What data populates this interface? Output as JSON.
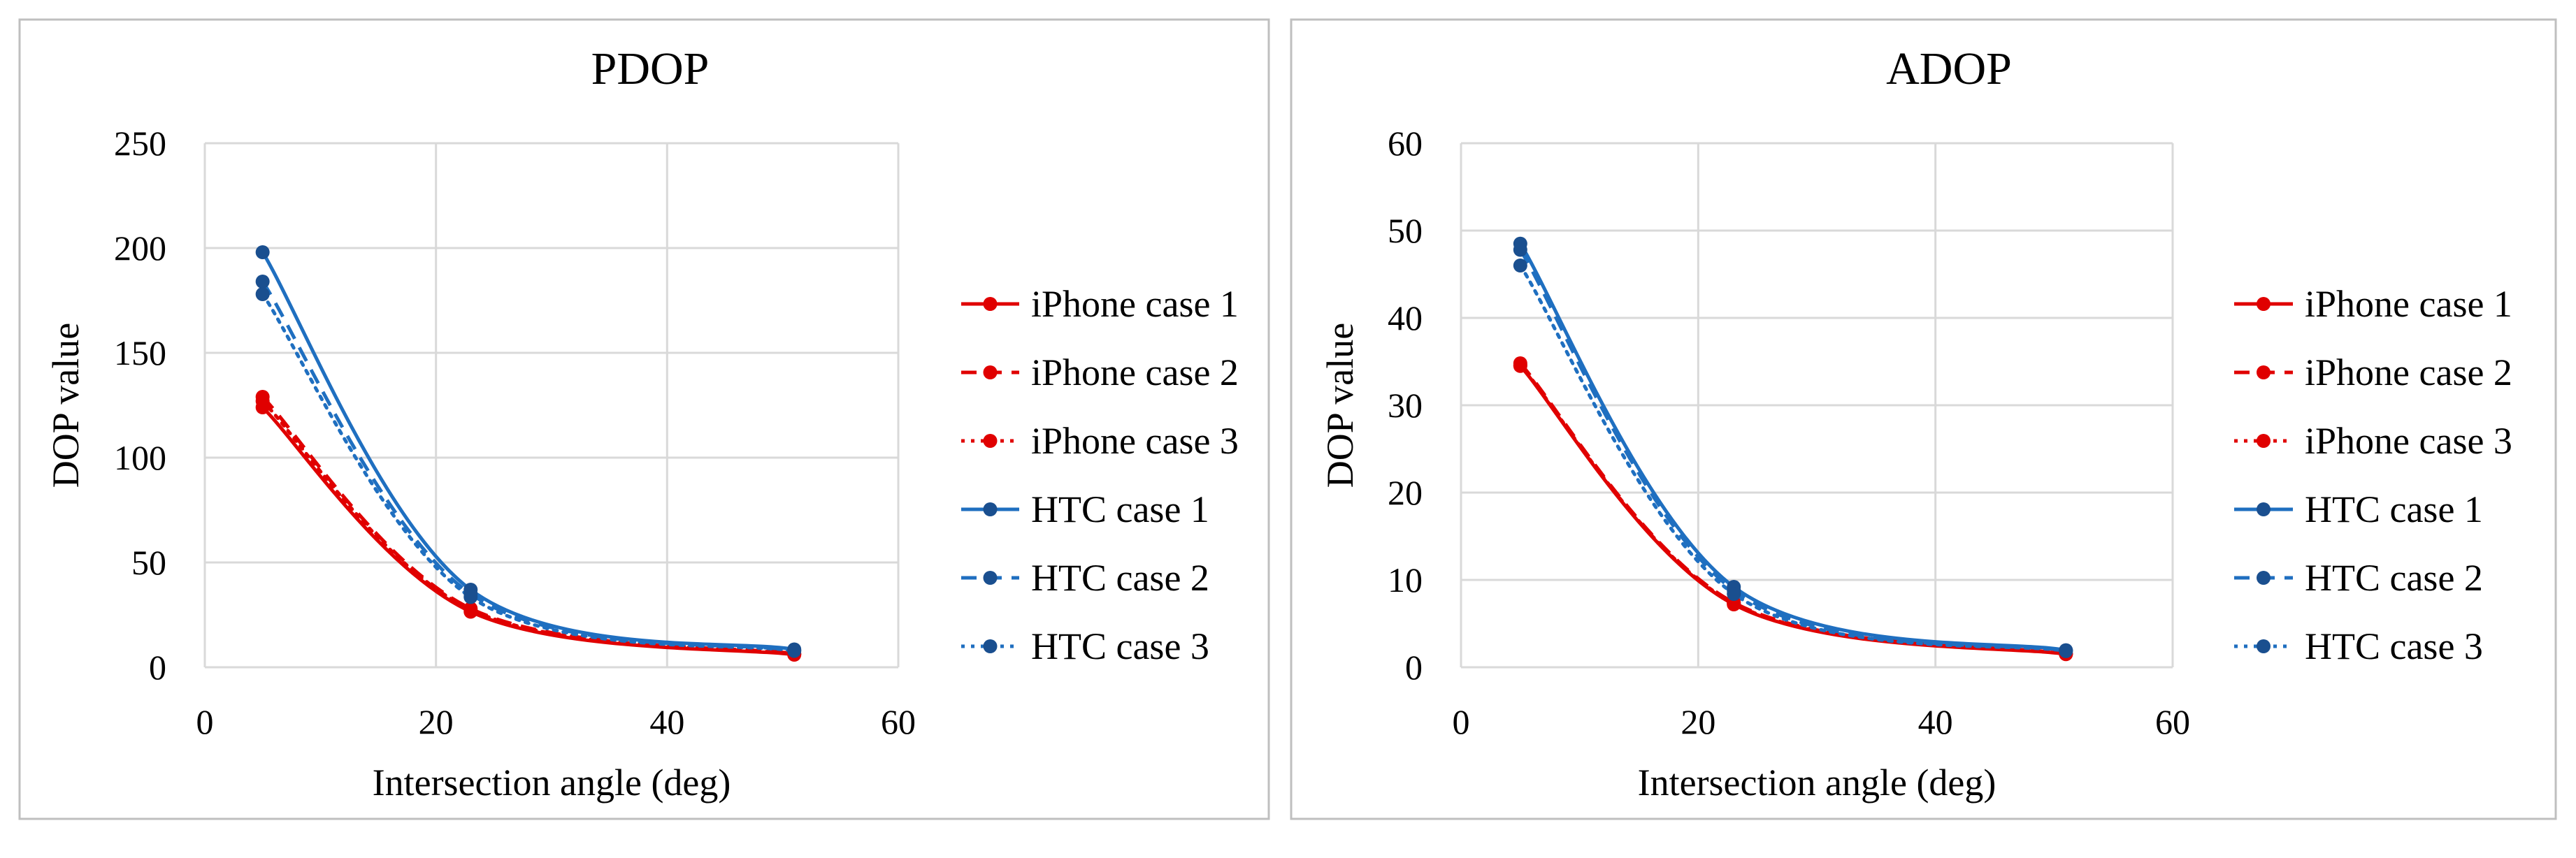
{
  "chart_data": [
    {
      "type": "scatter",
      "title": "PDOP",
      "xlabel": "Intersection angle (deg)",
      "ylabel": "DOP value",
      "xlim": [
        0,
        60
      ],
      "ylim": [
        0,
        250
      ],
      "xticks": [
        0,
        20,
        40,
        60
      ],
      "yticks": [
        0,
        50,
        100,
        150,
        200,
        250
      ],
      "grid": true,
      "legend_position": "right",
      "series": [
        {
          "name": "iPhone case 1",
          "color": "#e00000",
          "line_style": "solid",
          "x": [
            5,
            23,
            51
          ],
          "y": [
            124,
            26.5,
            6
          ]
        },
        {
          "name": "iPhone case 2",
          "color": "#e00000",
          "line_style": "dashed",
          "x": [
            5,
            23,
            51
          ],
          "y": [
            129,
            28,
            6.5
          ]
        },
        {
          "name": "iPhone case 3",
          "color": "#e00000",
          "line_style": "dotted",
          "x": [
            5,
            23,
            51
          ],
          "y": [
            127,
            27.5,
            6.3
          ]
        },
        {
          "name": "HTC case 1",
          "color": "#1f6fc0",
          "line_style": "solid",
          "x": [
            5,
            23,
            51
          ],
          "y": [
            198,
            37,
            8.5
          ]
        },
        {
          "name": "HTC case 2",
          "color": "#1f6fc0",
          "line_style": "dashed",
          "x": [
            5,
            23,
            51
          ],
          "y": [
            184,
            35,
            8
          ]
        },
        {
          "name": "HTC case 3",
          "color": "#1f6fc0",
          "line_style": "dotted",
          "x": [
            5,
            23,
            51
          ],
          "y": [
            178,
            33.5,
            7.8
          ]
        }
      ]
    },
    {
      "type": "scatter",
      "title": "ADOP",
      "xlabel": "Intersection angle (deg)",
      "ylabel": "DOP value",
      "xlim": [
        0,
        60
      ],
      "ylim": [
        0,
        60
      ],
      "xticks": [
        0,
        20,
        40,
        60
      ],
      "yticks": [
        0,
        10,
        20,
        30,
        40,
        50,
        60
      ],
      "grid": true,
      "legend_position": "right",
      "series": [
        {
          "name": "iPhone case 1",
          "color": "#e00000",
          "line_style": "solid",
          "x": [
            5,
            23,
            51
          ],
          "y": [
            34.5,
            7.2,
            1.5
          ]
        },
        {
          "name": "iPhone case 2",
          "color": "#e00000",
          "line_style": "dashed",
          "x": [
            5,
            23,
            51
          ],
          "y": [
            34.8,
            7.4,
            1.55
          ]
        },
        {
          "name": "iPhone case 3",
          "color": "#e00000",
          "line_style": "dotted",
          "x": [
            5,
            23,
            51
          ],
          "y": [
            34.6,
            7.3,
            1.52
          ]
        },
        {
          "name": "HTC case 1",
          "color": "#1f6fc0",
          "line_style": "solid",
          "x": [
            5,
            23,
            51
          ],
          "y": [
            48.5,
            9.2,
            1.95
          ]
        },
        {
          "name": "HTC case 2",
          "color": "#1f6fc0",
          "line_style": "dashed",
          "x": [
            5,
            23,
            51
          ],
          "y": [
            47.8,
            8.8,
            1.9
          ]
        },
        {
          "name": "HTC case 3",
          "color": "#1f6fc0",
          "line_style": "dotted",
          "x": [
            5,
            23,
            51
          ],
          "y": [
            46,
            8.4,
            1.85
          ]
        }
      ]
    }
  ]
}
